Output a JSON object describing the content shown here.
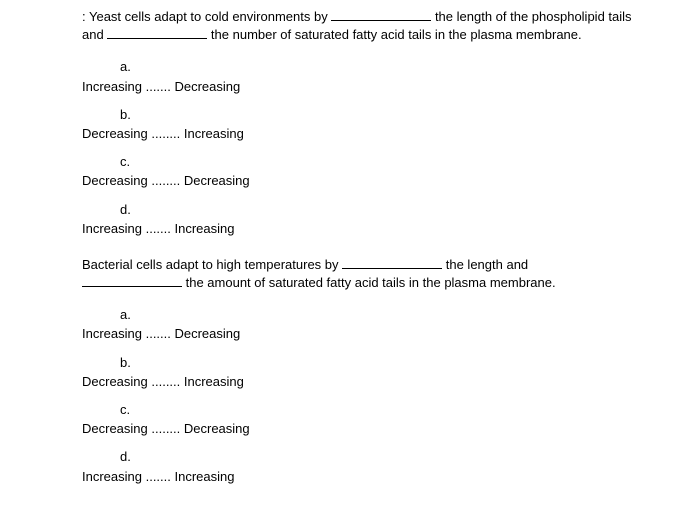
{
  "q1": {
    "stem_pre1": ": Yeast cells adapt to cold environments by ",
    "stem_post1": " the length of the phospholipid tails",
    "stem_pre2": "and ",
    "stem_post2": " the number of saturated fatty acid tails in the plasma membrane.",
    "options": {
      "a": {
        "letter": "a.",
        "text": "Increasing ....... Decreasing"
      },
      "b": {
        "letter": "b.",
        "text": "Decreasing ........ Increasing"
      },
      "c": {
        "letter": "c.",
        "text": "Decreasing ........ Decreasing"
      },
      "d": {
        "letter": "d.",
        "text": "Increasing ....... Increasing"
      }
    }
  },
  "q2": {
    "stem_pre1": "Bacterial cells adapt to high temperatures by ",
    "stem_post1": " the length and",
    "stem_pre2": "",
    "stem_post2": " the amount of saturated fatty acid tails in the plasma membrane.",
    "options": {
      "a": {
        "letter": "a.",
        "text": "Increasing ....... Decreasing"
      },
      "b": {
        "letter": "b.",
        "text": "Decreasing ........ Increasing"
      },
      "c": {
        "letter": "c.",
        "text": "Decreasing ........ Decreasing"
      },
      "d": {
        "letter": "d.",
        "text": "Increasing ....... Increasing"
      }
    }
  }
}
